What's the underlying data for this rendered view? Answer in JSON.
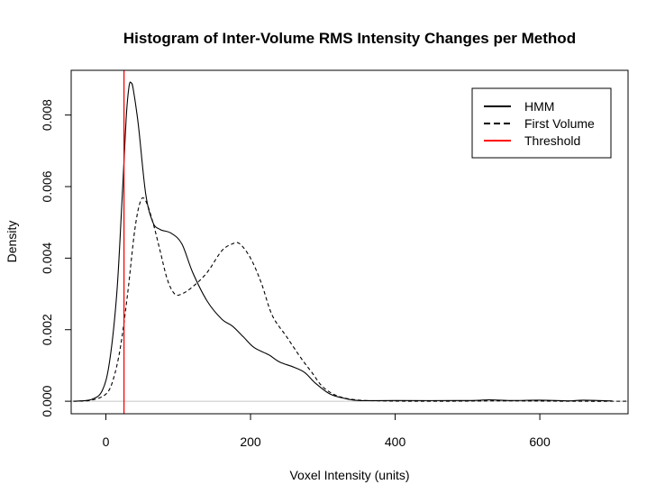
{
  "chart_data": {
    "type": "line",
    "title": "Histogram of Inter-Volume RMS Intensity Changes per Method",
    "xlabel": "Voxel Intensity (units)",
    "ylabel": "Density",
    "xlim": [
      -48,
      722
    ],
    "ylim": [
      -0.00035,
      0.00925
    ],
    "x_ticks": [
      0,
      200,
      400,
      600
    ],
    "x_tick_labels": [
      "0",
      "200",
      "400",
      "600"
    ],
    "y_ticks": [
      0,
      0.002,
      0.004,
      0.006,
      0.008
    ],
    "y_tick_labels": [
      "0.000",
      "0.002",
      "0.004",
      "0.006",
      "0.008"
    ],
    "grid": false,
    "legend_position": "top-right",
    "zero_line": 0,
    "threshold": {
      "name": "Threshold",
      "x": 25,
      "color": "#ff0000"
    },
    "series": [
      {
        "name": "HMM",
        "style": "solid",
        "color": "#000000",
        "points": [
          [
            -45,
            0.0
          ],
          [
            -20,
            5e-05
          ],
          [
            -5,
            0.0003
          ],
          [
            5,
            0.0011
          ],
          [
            15,
            0.003
          ],
          [
            22,
            0.0055
          ],
          [
            28,
            0.0079
          ],
          [
            32,
            0.0088
          ],
          [
            35,
            0.0089
          ],
          [
            38,
            0.0087
          ],
          [
            45,
            0.0077
          ],
          [
            55,
            0.0058
          ],
          [
            65,
            0.005
          ],
          [
            75,
            0.0048
          ],
          [
            90,
            0.0047
          ],
          [
            105,
            0.0044
          ],
          [
            120,
            0.0036
          ],
          [
            140,
            0.0028
          ],
          [
            160,
            0.0023
          ],
          [
            175,
            0.0021
          ],
          [
            190,
            0.0018
          ],
          [
            205,
            0.0015
          ],
          [
            225,
            0.0013
          ],
          [
            240,
            0.0011
          ],
          [
            260,
            0.00095
          ],
          [
            275,
            0.0008
          ],
          [
            290,
            0.0005
          ],
          [
            310,
            0.0002
          ],
          [
            330,
            8e-05
          ],
          [
            350,
            2e-05
          ],
          [
            400,
            2e-05
          ],
          [
            500,
            2e-05
          ],
          [
            530,
            4e-05
          ],
          [
            560,
            2e-05
          ],
          [
            600,
            3e-05
          ],
          [
            640,
            1e-05
          ],
          [
            660,
            3e-05
          ],
          [
            700,
            1e-05
          ]
        ]
      },
      {
        "name": "First Volume",
        "style": "dashed",
        "color": "#000000",
        "points": [
          [
            -45,
            0.0
          ],
          [
            -20,
            3e-05
          ],
          [
            0,
            0.0002
          ],
          [
            10,
            0.0006
          ],
          [
            20,
            0.0015
          ],
          [
            30,
            0.003
          ],
          [
            40,
            0.0048
          ],
          [
            48,
            0.0056
          ],
          [
            55,
            0.0056
          ],
          [
            65,
            0.005
          ],
          [
            75,
            0.0042
          ],
          [
            85,
            0.0034
          ],
          [
            95,
            0.003
          ],
          [
            105,
            0.003
          ],
          [
            120,
            0.0032
          ],
          [
            140,
            0.0036
          ],
          [
            160,
            0.0042
          ],
          [
            175,
            0.0044
          ],
          [
            185,
            0.0044
          ],
          [
            200,
            0.004
          ],
          [
            215,
            0.0033
          ],
          [
            230,
            0.0024
          ],
          [
            250,
            0.0018
          ],
          [
            270,
            0.0012
          ],
          [
            285,
            0.0008
          ],
          [
            300,
            0.0004
          ],
          [
            320,
            0.00015
          ],
          [
            345,
            4e-05
          ],
          [
            380,
            1e-05
          ],
          [
            450,
            0.0
          ],
          [
            550,
            1e-05
          ],
          [
            650,
            0.0
          ],
          [
            720,
            0.0
          ]
        ]
      }
    ]
  }
}
